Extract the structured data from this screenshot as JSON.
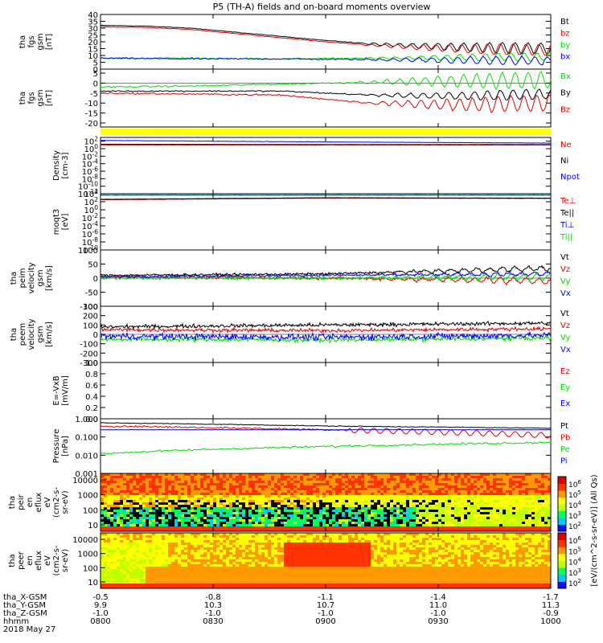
{
  "title": "P5 (TH-A) fields and on-board moments overview",
  "date": "2018 May 27",
  "colors": {
    "black": "#000000",
    "red": "#e00000",
    "green": "#00dd00",
    "blue": "#0000ff",
    "yellow": "#ffff00"
  },
  "time_axis": {
    "tick_labels": [
      "0800",
      "0830",
      "0900",
      "0930",
      "1000"
    ],
    "ephemeris": [
      {
        "label": "tha_X-GSM",
        "values": [
          "-0.5",
          "-0.8",
          "-1.1",
          "-1.4",
          "-1.7"
        ]
      },
      {
        "label": "tha_Y-GSM",
        "values": [
          "9.9",
          "10.3",
          "10.7",
          "11.0",
          "11.3"
        ]
      },
      {
        "label": "tha_Z-GSM",
        "values": [
          "-1.0",
          "-1.0",
          "-1.0",
          "-1.0",
          "-0.9"
        ]
      },
      {
        "label": "hhmm",
        "values": [
          "0800",
          "0830",
          "0900",
          "0930",
          "1000"
        ]
      }
    ]
  },
  "colorbar": {
    "label": "[eV/(cm^2-s-sr-eV)] (All Qs)",
    "ticks_top": [
      "10^6",
      "10^5",
      "10^4",
      "10^3",
      "10^2"
    ],
    "ticks_bottom": [
      "10^6",
      "10^5",
      "10^4",
      "10^3",
      "10^2"
    ]
  },
  "chart_data": [
    {
      "type": "line",
      "ylabel": [
        "tha",
        "fgs",
        "gsm",
        "[nT]"
      ],
      "ylim": [
        0,
        40
      ],
      "yticks": [
        "0",
        "5",
        "10",
        "15",
        "20",
        "25",
        "30",
        "35",
        "40"
      ],
      "series": [
        {
          "name": "Bt",
          "color": "black",
          "points": [
            [
              0,
              32
            ],
            [
              0.1,
              31.5
            ],
            [
              0.2,
              30
            ],
            [
              0.3,
              27
            ],
            [
              0.4,
              24
            ],
            [
              0.5,
              21
            ],
            [
              0.6,
              18.5
            ],
            [
              0.7,
              17
            ],
            [
              0.8,
              16
            ],
            [
              0.9,
              15.5
            ],
            [
              1,
              15
            ]
          ]
        },
        {
          "name": "bz",
          "color": "red",
          "points": [
            [
              0,
              31
            ],
            [
              0.1,
              30.5
            ],
            [
              0.2,
              29
            ],
            [
              0.3,
              26
            ],
            [
              0.4,
              23
            ],
            [
              0.5,
              20
            ],
            [
              0.6,
              17.5
            ],
            [
              0.7,
              16
            ],
            [
              0.8,
              15
            ],
            [
              0.9,
              14.5
            ],
            [
              1,
              14
            ]
          ]
        },
        {
          "name": "by",
          "color": "green",
          "points": [
            [
              0,
              8
            ],
            [
              0.2,
              8
            ],
            [
              0.4,
              7.5
            ],
            [
              0.6,
              8
            ],
            [
              0.8,
              8.5
            ],
            [
              1,
              9
            ]
          ]
        },
        {
          "name": "bx",
          "color": "blue",
          "points": [
            [
              0,
              8
            ],
            [
              0.2,
              7.5
            ],
            [
              0.4,
              7.5
            ],
            [
              0.6,
              7
            ],
            [
              0.8,
              6.5
            ],
            [
              1,
              6
            ]
          ]
        }
      ]
    },
    {
      "type": "line",
      "ylabel": [
        "tha",
        "fgs",
        "gsm",
        "[nT]"
      ],
      "ylim": [
        -22,
        7
      ],
      "yticks": [
        "-20",
        "-15",
        "-10",
        "-5",
        "0",
        "5"
      ],
      "series": [
        {
          "name": "Bx",
          "color": "green",
          "points": [
            [
              0,
              -2
            ],
            [
              0.2,
              -1.5
            ],
            [
              0.4,
              -0.5
            ],
            [
              0.6,
              0.5
            ],
            [
              0.8,
              1
            ],
            [
              1,
              1.5
            ]
          ]
        },
        {
          "name": "By",
          "color": "black",
          "points": [
            [
              0,
              -4
            ],
            [
              0.2,
              -4
            ],
            [
              0.4,
              -4
            ],
            [
              0.6,
              -6
            ],
            [
              0.8,
              -6.5
            ],
            [
              1,
              -5.5
            ]
          ]
        },
        {
          "name": "Bz",
          "color": "red",
          "points": [
            [
              0,
              -5
            ],
            [
              0.2,
              -5.5
            ],
            [
              0.4,
              -6
            ],
            [
              0.6,
              -10
            ],
            [
              0.8,
              -11
            ],
            [
              1,
              -10
            ]
          ]
        }
      ]
    },
    {
      "type": "bar",
      "ylabel": [],
      "values": [
        1
      ],
      "color": "yellow"
    },
    {
      "type": "line",
      "ylabel": [
        "Density",
        "[cm-3]"
      ],
      "ylim": [
        "10^-12",
        "10^3"
      ],
      "yticks": [
        "10^2",
        "10^0",
        "10^-2",
        "10^-4",
        "10^-6",
        "10^-8",
        "10^-10",
        "10^-12"
      ],
      "series": [
        {
          "name": "Ne",
          "color": "red",
          "points": [
            [
              0,
              1
            ],
            [
              0.5,
              1
            ],
            [
              1,
              1
            ]
          ]
        },
        {
          "name": "Ni",
          "color": "black",
          "points": [
            [
              0,
              1.2
            ],
            [
              0.5,
              1.1
            ],
            [
              1,
              1.1
            ]
          ]
        },
        {
          "name": "Npot",
          "color": "blue",
          "points": [
            [
              0,
              2.2
            ],
            [
              0.5,
              1.8
            ],
            [
              1,
              1.5
            ]
          ]
        }
      ]
    },
    {
      "type": "line",
      "ylabel": [
        "moqt3",
        "[eV]"
      ],
      "ylim": [
        "10^-10",
        "10^4"
      ],
      "yticks": [
        "10^4",
        "10^2",
        "10^0",
        "10^-2",
        "10^-4",
        "10^-6",
        "10^-8",
        "10^-10"
      ],
      "series": [
        {
          "name": "Te⊥",
          "color": "red",
          "points": [
            [
              0,
              2.5
            ],
            [
              0.5,
              2.9
            ],
            [
              1,
              2.8
            ]
          ]
        },
        {
          "name": "Te||",
          "color": "black",
          "points": [
            [
              0,
              2.6
            ],
            [
              0.5,
              3.0
            ],
            [
              1,
              2.9
            ]
          ]
        },
        {
          "name": "Ti⊥",
          "color": "blue",
          "points": [
            [
              0,
              3.7
            ],
            [
              0.5,
              3.7
            ],
            [
              1,
              3.7
            ]
          ]
        },
        {
          "name": "Ti||",
          "color": "green",
          "points": [
            [
              0,
              3.6
            ],
            [
              0.5,
              3.6
            ],
            [
              1,
              3.6
            ]
          ]
        }
      ]
    },
    {
      "type": "line",
      "ylabel": [
        "tha",
        "peim",
        "velocity",
        "gsm",
        "[km/s]"
      ],
      "ylim": [
        -100,
        100
      ],
      "yticks": [
        "100",
        "50",
        "0",
        "-50",
        "-100"
      ],
      "series": [
        {
          "name": "Vt",
          "color": "black",
          "points": [
            [
              0,
              10
            ],
            [
              0.5,
              15
            ],
            [
              1,
              35
            ]
          ]
        },
        {
          "name": "Vz",
          "color": "red",
          "points": [
            [
              0,
              5
            ],
            [
              0.5,
              0
            ],
            [
              1,
              -10
            ]
          ]
        },
        {
          "name": "Vy",
          "color": "green",
          "points": [
            [
              0,
              0
            ],
            [
              0.5,
              0
            ],
            [
              1,
              5
            ]
          ]
        },
        {
          "name": "Vx",
          "color": "blue",
          "points": [
            [
              0,
              5
            ],
            [
              0.5,
              10
            ],
            [
              1,
              15
            ]
          ]
        }
      ]
    },
    {
      "type": "line",
      "ylabel": [
        "tha",
        "peem",
        "velocity",
        "gsm",
        "[km/s]"
      ],
      "ylim": [
        -300,
        300
      ],
      "yticks": [
        "300",
        "200",
        "100",
        "0",
        "-100",
        "-200",
        "-300"
      ],
      "series": [
        {
          "name": "Vt",
          "color": "black",
          "points": [
            [
              0,
              80
            ],
            [
              0.5,
              100
            ],
            [
              1,
              120
            ]
          ]
        },
        {
          "name": "Vz",
          "color": "red",
          "points": [
            [
              0,
              50
            ],
            [
              0.5,
              40
            ],
            [
              1,
              60
            ]
          ]
        },
        {
          "name": "Vy",
          "color": "green",
          "points": [
            [
              0,
              -50
            ],
            [
              0.5,
              -60
            ],
            [
              1,
              -40
            ]
          ]
        },
        {
          "name": "Vx",
          "color": "blue",
          "points": [
            [
              0,
              -20
            ],
            [
              0.5,
              -30
            ],
            [
              1,
              -10
            ]
          ]
        }
      ]
    },
    {
      "type": "line",
      "ylabel": [
        "E=-VxB",
        "[mV/m]"
      ],
      "ylim": [
        0,
        1
      ],
      "yticks": [
        "1.0",
        "0.8",
        "0.6",
        "0.4",
        "0.2",
        "0.0"
      ],
      "series": [
        {
          "name": "Ez",
          "color": "red",
          "points": []
        },
        {
          "name": "Ey",
          "color": "green",
          "points": []
        },
        {
          "name": "Ex",
          "color": "blue",
          "points": []
        }
      ]
    },
    {
      "type": "line",
      "ylabel": [
        "Pressure",
        "[nPa]"
      ],
      "ylim": [
        0.001,
        1
      ],
      "yticks": [
        "1.000",
        "0.100",
        "0.010",
        "0.001"
      ],
      "series": [
        {
          "name": "Pt",
          "color": "black",
          "points": [
            [
              0,
              0.6
            ],
            [
              0.5,
              0.4
            ],
            [
              1,
              0.3
            ]
          ]
        },
        {
          "name": "Pb",
          "color": "red",
          "points": [
            [
              0,
              0.4
            ],
            [
              0.5,
              0.25
            ],
            [
              1,
              0.12
            ]
          ]
        },
        {
          "name": "Pe",
          "color": "green",
          "points": [
            [
              0,
              0.012
            ],
            [
              0.5,
              0.03
            ],
            [
              1,
              0.05
            ]
          ]
        },
        {
          "name": "Pi",
          "color": "blue",
          "points": [
            [
              0,
              0.25
            ],
            [
              0.5,
              0.25
            ],
            [
              1,
              0.25
            ]
          ]
        }
      ]
    },
    {
      "type": "heatmap",
      "ylabel": [
        "tha",
        "peir",
        "en",
        "eflux",
        "eV",
        "(cm2-s-",
        "sr-eV)"
      ],
      "yticks": [
        "10000",
        "1000",
        "100",
        "10"
      ]
    },
    {
      "type": "heatmap",
      "ylabel": [
        "tha",
        "peer",
        "en",
        "eflux",
        "eV",
        "(cm2-s-",
        "sr-eV)"
      ],
      "yticks": [
        "10000",
        "1000",
        "100",
        "10"
      ]
    }
  ],
  "icons": {
    "spectrogram_top": "ion-energy-spectrogram",
    "spectrogram_bottom": "electron-energy-spectrogram"
  }
}
